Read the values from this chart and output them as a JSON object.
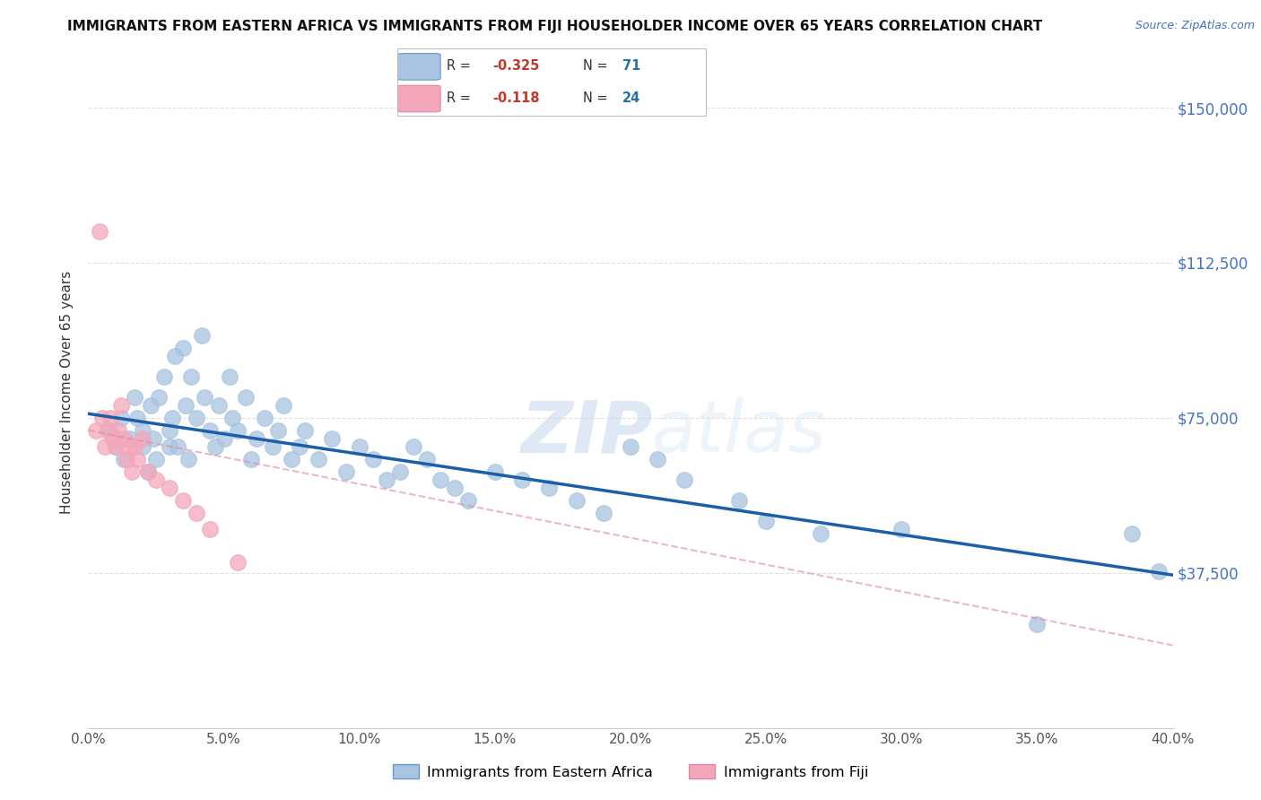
{
  "title": "IMMIGRANTS FROM EASTERN AFRICA VS IMMIGRANTS FROM FIJI HOUSEHOLDER INCOME OVER 65 YEARS CORRELATION CHART",
  "source": "Source: ZipAtlas.com",
  "ylabel": "Householder Income Over 65 years",
  "xlabel_vals": [
    0.0,
    5.0,
    10.0,
    15.0,
    20.0,
    25.0,
    30.0,
    35.0,
    40.0
  ],
  "ytick_labels": [
    "$37,500",
    "$75,000",
    "$112,500",
    "$150,000"
  ],
  "ytick_vals": [
    37500,
    75000,
    112500,
    150000
  ],
  "xlim": [
    0.0,
    40.0
  ],
  "ylim": [
    0,
    162500
  ],
  "R_blue": -0.325,
  "N_blue": 71,
  "R_pink": -0.118,
  "N_pink": 24,
  "watermark_zip": "ZIP",
  "watermark_atlas": "atlas",
  "blue_color": "#a8c4e0",
  "blue_edge_color": "#6699cc",
  "blue_line_color": "#1a5fa8",
  "pink_color": "#f4a7b9",
  "pink_edge_color": "#dd88aa",
  "pink_line_color": "#dd88aa",
  "blue_scatter_x": [
    0.8,
    1.0,
    1.2,
    1.3,
    1.5,
    1.7,
    1.8,
    2.0,
    2.0,
    2.2,
    2.3,
    2.4,
    2.5,
    2.6,
    2.8,
    3.0,
    3.0,
    3.1,
    3.2,
    3.3,
    3.5,
    3.6,
    3.7,
    3.8,
    4.0,
    4.2,
    4.3,
    4.5,
    4.7,
    4.8,
    5.0,
    5.2,
    5.3,
    5.5,
    5.8,
    6.0,
    6.2,
    6.5,
    6.8,
    7.0,
    7.2,
    7.5,
    7.8,
    8.0,
    8.5,
    9.0,
    9.5,
    10.0,
    10.5,
    11.0,
    11.5,
    12.0,
    12.5,
    13.0,
    13.5,
    14.0,
    15.0,
    16.0,
    17.0,
    18.0,
    19.0,
    20.0,
    21.0,
    22.0,
    24.0,
    25.0,
    27.0,
    30.0,
    35.0,
    38.5,
    39.5
  ],
  "blue_scatter_y": [
    72000,
    68000,
    75000,
    65000,
    70000,
    80000,
    75000,
    68000,
    72000,
    62000,
    78000,
    70000,
    65000,
    80000,
    85000,
    72000,
    68000,
    75000,
    90000,
    68000,
    92000,
    78000,
    65000,
    85000,
    75000,
    95000,
    80000,
    72000,
    68000,
    78000,
    70000,
    85000,
    75000,
    72000,
    80000,
    65000,
    70000,
    75000,
    68000,
    72000,
    78000,
    65000,
    68000,
    72000,
    65000,
    70000,
    62000,
    68000,
    65000,
    60000,
    62000,
    68000,
    65000,
    60000,
    58000,
    55000,
    62000,
    60000,
    58000,
    55000,
    52000,
    68000,
    65000,
    60000,
    55000,
    50000,
    47000,
    48000,
    25000,
    47000,
    38000
  ],
  "pink_scatter_x": [
    0.3,
    0.5,
    0.6,
    0.7,
    0.8,
    0.9,
    1.0,
    1.1,
    1.2,
    1.3,
    1.4,
    1.5,
    1.6,
    1.7,
    1.8,
    2.0,
    2.2,
    2.5,
    3.0,
    3.5,
    4.0,
    4.5,
    5.5,
    0.4
  ],
  "pink_scatter_y": [
    72000,
    75000,
    68000,
    72000,
    75000,
    70000,
    68000,
    72000,
    78000,
    70000,
    65000,
    68000,
    62000,
    68000,
    65000,
    70000,
    62000,
    60000,
    58000,
    55000,
    52000,
    48000,
    40000,
    120000
  ],
  "background_color": "#ffffff",
  "grid_color": "#dddddd",
  "blue_line_x": [
    0.0,
    40.0
  ],
  "blue_line_y": [
    76000,
    37000
  ],
  "pink_line_x": [
    0.0,
    40.0
  ],
  "pink_line_y": [
    72000,
    20000
  ]
}
